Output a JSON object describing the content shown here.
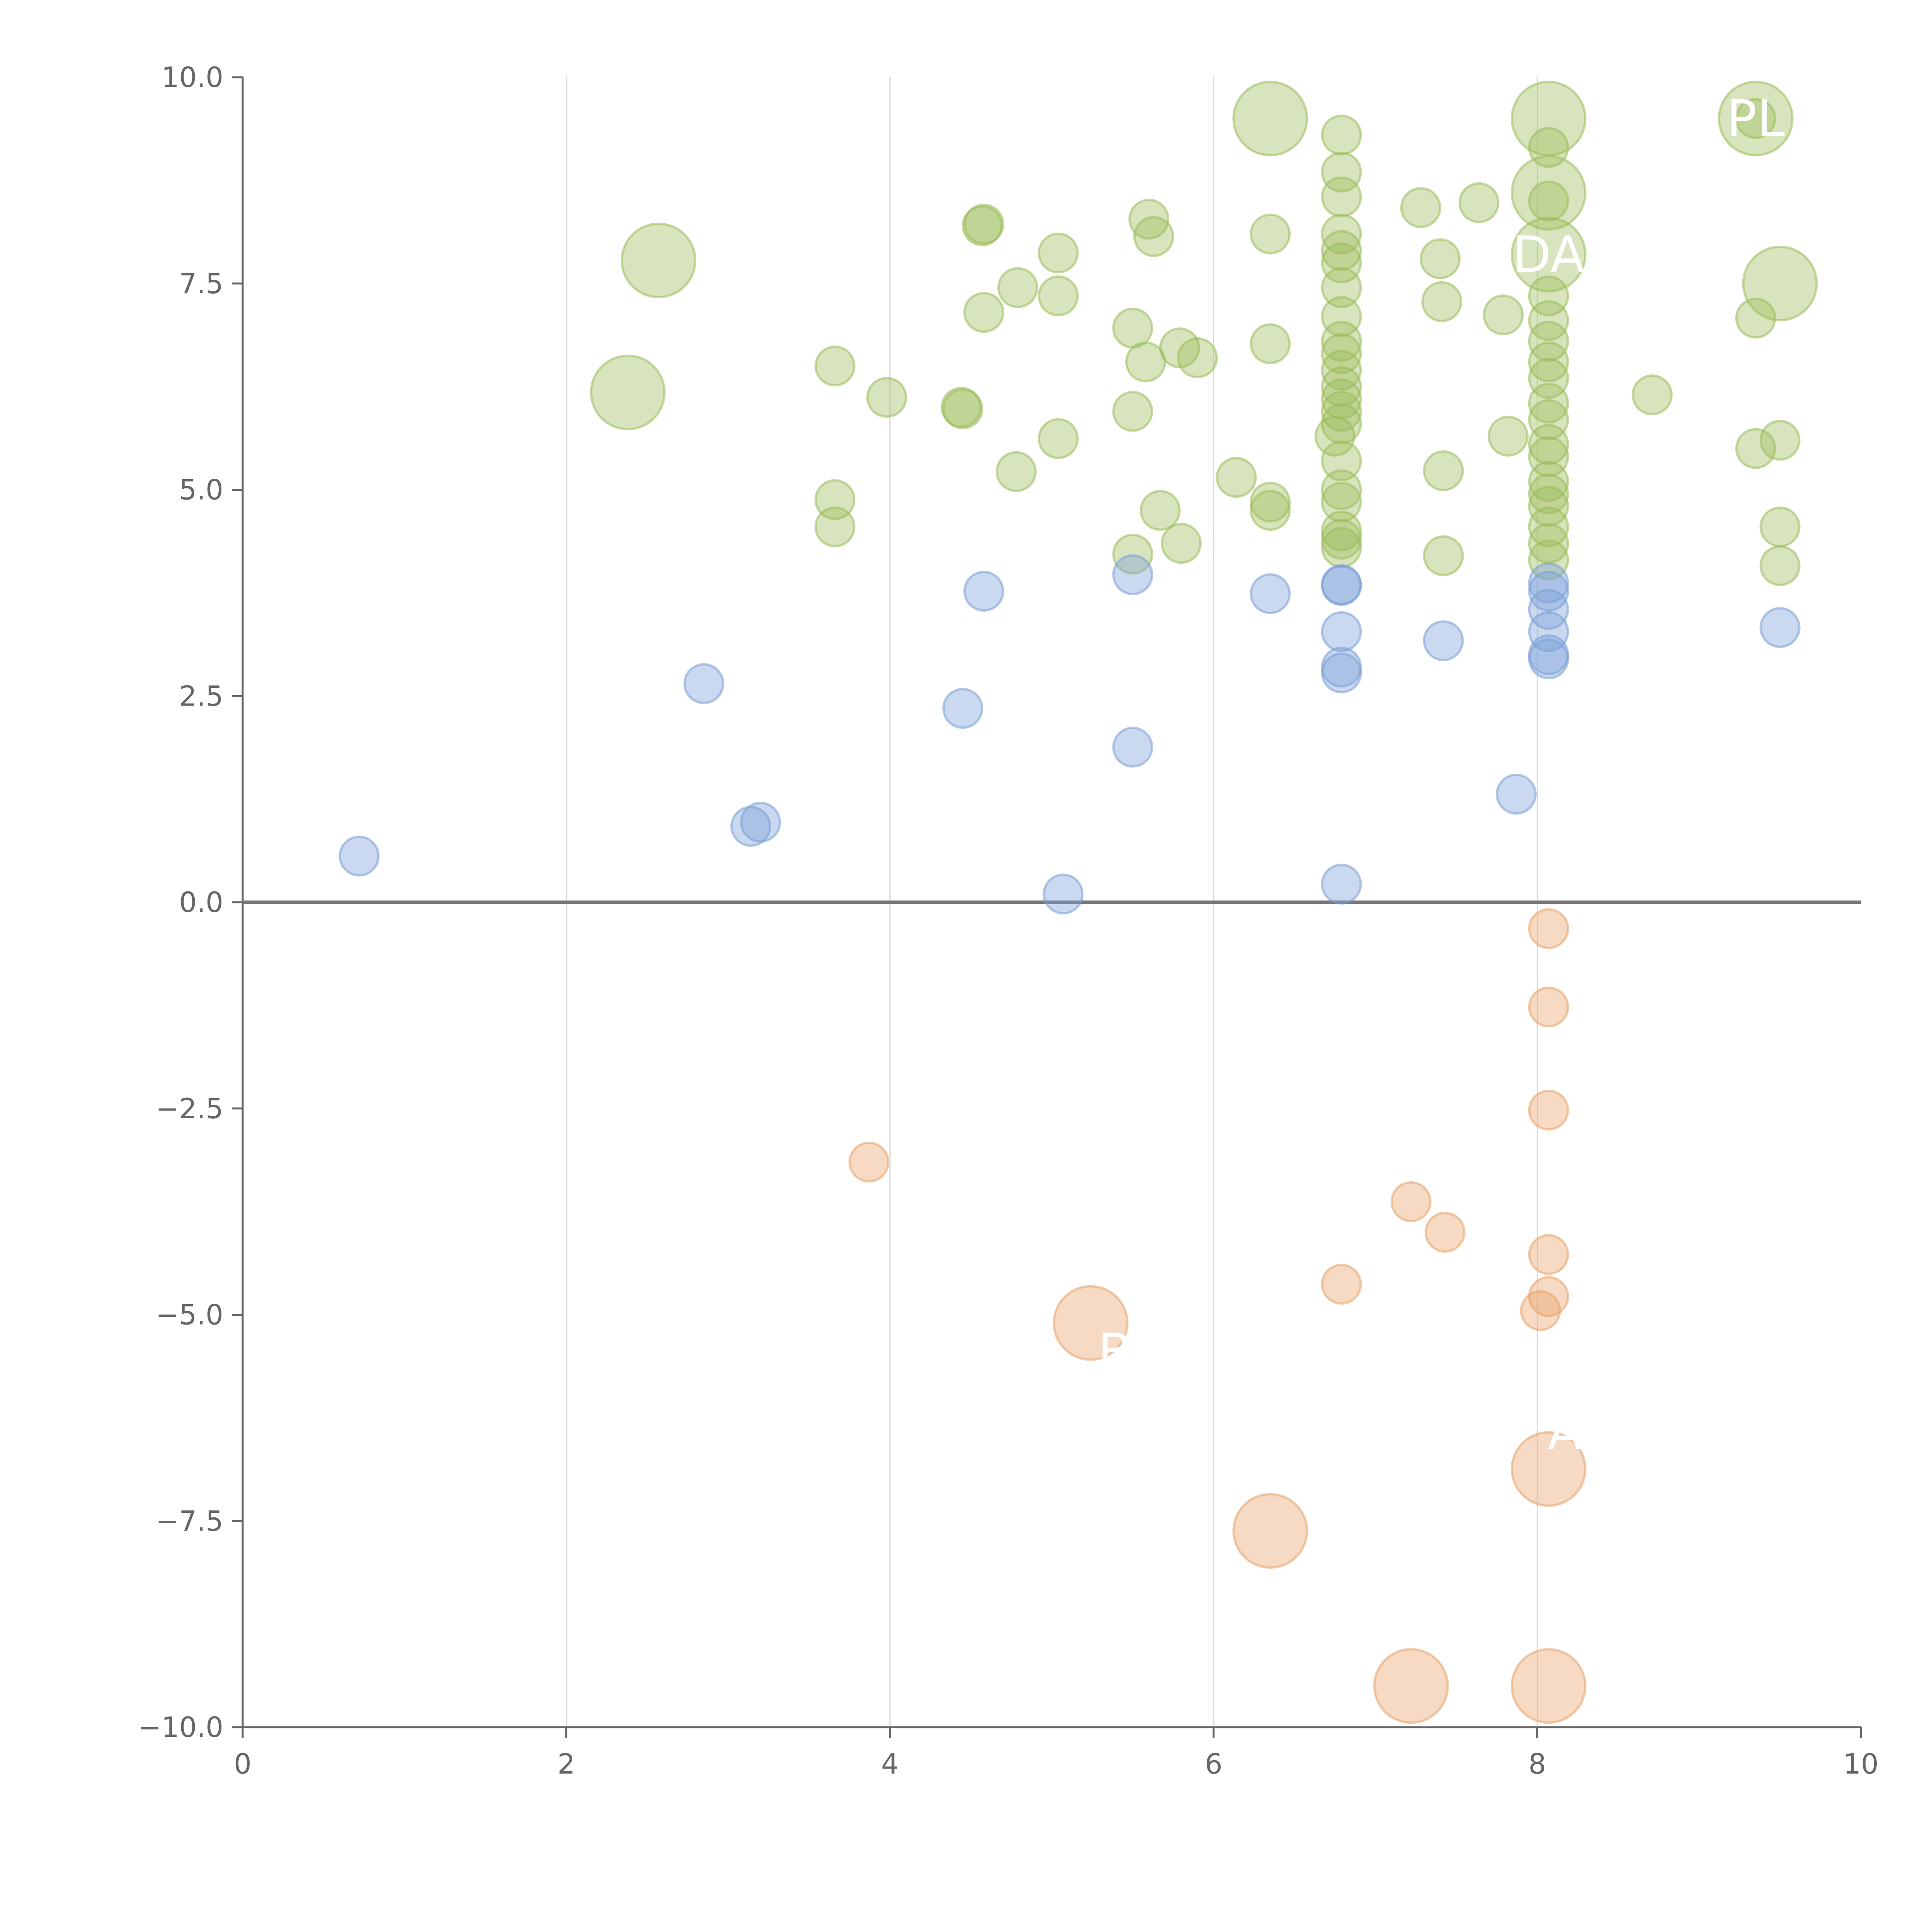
{
  "colors": {
    "positive_high": "#9bbb59",
    "positive_low": "#7a9fd6",
    "negative": "#e8a36a",
    "axis": "#666666",
    "grid": "#d9d9d9"
  },
  "chart_data": {
    "type": "scatter",
    "title": "",
    "xlabel": "",
    "ylabel": "",
    "xlim": [
      0,
      10
    ],
    "ylim": [
      -10,
      10
    ],
    "x_ticks": [
      0,
      2,
      4,
      6,
      8,
      10
    ],
    "x_tick_labels": [
      "0",
      "2",
      "4",
      "6",
      "8",
      "10"
    ],
    "y_ticks": [
      10,
      7.5,
      5,
      2.5,
      0,
      -2.5,
      -5,
      -7.5,
      -10
    ],
    "y_tick_labels": [
      "10.0",
      "7.5",
      "5.0",
      "2.5",
      "0.0",
      "−2.5",
      "−5.0",
      "−7.5",
      "−10.0"
    ],
    "grid": "vertical",
    "series": [
      {
        "name": "green",
        "color": "#9bbb59",
        "points": [
          [
            6.35,
            9.5,
            "large"
          ],
          [
            8.07,
            9.5,
            "large"
          ],
          [
            9.35,
            9.5,
            "large"
          ],
          [
            9.35,
            9.5,
            "small"
          ],
          [
            8.07,
            8.6,
            "large"
          ],
          [
            8.07,
            7.85,
            "large"
          ],
          [
            2.57,
            7.78,
            "large"
          ],
          [
            9.5,
            7.5,
            "large"
          ],
          [
            2.38,
            6.18,
            "large"
          ],
          [
            6.79,
            9.3,
            "small"
          ],
          [
            8.07,
            9.15,
            "small"
          ],
          [
            6.79,
            8.85,
            "small"
          ],
          [
            6.79,
            8.55,
            "small"
          ],
          [
            8.07,
            8.5,
            "small"
          ],
          [
            7.28,
            8.42,
            "small"
          ],
          [
            7.64,
            8.48,
            "small"
          ],
          [
            5.6,
            8.28,
            "small"
          ],
          [
            4.57,
            8.2,
            "small"
          ],
          [
            4.58,
            8.22,
            "small"
          ],
          [
            6.35,
            8.1,
            "small"
          ],
          [
            5.63,
            8.07,
            "small"
          ],
          [
            6.79,
            8.1,
            "small"
          ],
          [
            6.79,
            7.9,
            "small"
          ],
          [
            5.04,
            7.87,
            "small"
          ],
          [
            6.79,
            7.75,
            "small"
          ],
          [
            7.4,
            7.8,
            "small"
          ],
          [
            4.79,
            7.45,
            "small"
          ],
          [
            6.79,
            7.45,
            "small"
          ],
          [
            5.04,
            7.35,
            "small"
          ],
          [
            7.41,
            7.28,
            "small"
          ],
          [
            4.58,
            7.15,
            "small"
          ],
          [
            7.79,
            7.12,
            "small"
          ],
          [
            6.79,
            7.1,
            "small"
          ],
          [
            9.35,
            7.08,
            "small"
          ],
          [
            8.07,
            7.35,
            "small"
          ],
          [
            8.07,
            7.05,
            "small"
          ],
          [
            5.5,
            6.96,
            "small"
          ],
          [
            6.79,
            6.8,
            "small"
          ],
          [
            6.35,
            6.77,
            "small"
          ],
          [
            8.07,
            6.8,
            "small"
          ],
          [
            5.79,
            6.72,
            "small"
          ],
          [
            6.79,
            6.65,
            "small"
          ],
          [
            5.9,
            6.6,
            "small"
          ],
          [
            8.07,
            6.55,
            "small"
          ],
          [
            5.58,
            6.55,
            "small"
          ],
          [
            3.66,
            6.5,
            "small"
          ],
          [
            6.79,
            6.45,
            "small"
          ],
          [
            8.07,
            6.35,
            "small"
          ],
          [
            6.79,
            6.25,
            "small"
          ],
          [
            8.71,
            6.15,
            "small"
          ],
          [
            3.98,
            6.12,
            "small"
          ],
          [
            6.79,
            6.1,
            "small"
          ],
          [
            8.07,
            6.05,
            "small"
          ],
          [
            4.44,
            6.0,
            "small"
          ],
          [
            4.45,
            5.98,
            "small"
          ],
          [
            6.79,
            5.95,
            "small"
          ],
          [
            5.5,
            5.95,
            "small"
          ],
          [
            8.07,
            5.85,
            "small"
          ],
          [
            6.79,
            5.8,
            "small"
          ],
          [
            7.82,
            5.65,
            "small"
          ],
          [
            6.75,
            5.65,
            "small"
          ],
          [
            5.04,
            5.62,
            "small"
          ],
          [
            9.5,
            5.6,
            "small"
          ],
          [
            8.07,
            5.55,
            "small"
          ],
          [
            9.35,
            5.5,
            "small"
          ],
          [
            6.79,
            5.35,
            "small"
          ],
          [
            8.07,
            5.4,
            "small"
          ],
          [
            7.42,
            5.23,
            "small"
          ],
          [
            4.78,
            5.22,
            "small"
          ],
          [
            6.14,
            5.15,
            "small"
          ],
          [
            8.07,
            5.1,
            "small"
          ],
          [
            6.79,
            5.0,
            "small"
          ],
          [
            8.07,
            4.95,
            "small"
          ],
          [
            6.79,
            4.85,
            "small"
          ],
          [
            3.66,
            4.88,
            "small"
          ],
          [
            6.35,
            4.85,
            "small"
          ],
          [
            8.07,
            4.8,
            "small"
          ],
          [
            5.67,
            4.75,
            "small"
          ],
          [
            6.35,
            4.75,
            "small"
          ],
          [
            9.5,
            4.55,
            "small"
          ],
          [
            3.66,
            4.55,
            "small"
          ],
          [
            8.07,
            4.55,
            "small"
          ],
          [
            6.79,
            4.5,
            "small"
          ],
          [
            6.79,
            4.4,
            "small"
          ],
          [
            5.8,
            4.35,
            "small"
          ],
          [
            8.07,
            4.35,
            "small"
          ],
          [
            6.79,
            4.3,
            "small"
          ],
          [
            5.5,
            4.22,
            "small"
          ],
          [
            7.42,
            4.2,
            "small"
          ],
          [
            8.07,
            4.15,
            "small"
          ],
          [
            9.5,
            4.08,
            "small"
          ]
        ]
      },
      {
        "name": "blue",
        "color": "#7a9fd6",
        "points": [
          [
            5.5,
            3.97,
            "small"
          ],
          [
            8.07,
            3.87,
            "small"
          ],
          [
            6.79,
            3.85,
            "small"
          ],
          [
            6.79,
            3.84,
            "small"
          ],
          [
            8.07,
            3.77,
            "small"
          ],
          [
            4.58,
            3.77,
            "small"
          ],
          [
            6.35,
            3.74,
            "small"
          ],
          [
            8.07,
            3.55,
            "small"
          ],
          [
            9.5,
            3.33,
            "small"
          ],
          [
            8.07,
            3.28,
            "small"
          ],
          [
            6.79,
            3.28,
            "small"
          ],
          [
            7.42,
            3.17,
            "small"
          ],
          [
            8.07,
            3.0,
            "small"
          ],
          [
            8.07,
            2.95,
            "small"
          ],
          [
            6.79,
            2.85,
            "small"
          ],
          [
            6.79,
            2.78,
            "small"
          ],
          [
            2.85,
            2.65,
            "small"
          ],
          [
            4.45,
            2.35,
            "small"
          ],
          [
            5.5,
            1.88,
            "small"
          ],
          [
            7.87,
            1.31,
            "small"
          ],
          [
            3.2,
            0.97,
            "small"
          ],
          [
            3.14,
            0.92,
            "small"
          ],
          [
            0.72,
            0.56,
            "small"
          ],
          [
            6.79,
            0.22,
            "small"
          ],
          [
            5.07,
            0.1,
            "small"
          ]
        ]
      },
      {
        "name": "orange",
        "color": "#e8a36a",
        "points": [
          [
            8.07,
            -0.32,
            "small"
          ],
          [
            8.07,
            -1.27,
            "small"
          ],
          [
            8.07,
            -2.52,
            "small"
          ],
          [
            3.87,
            -3.15,
            "small"
          ],
          [
            7.22,
            -3.63,
            "small"
          ],
          [
            7.43,
            -4.0,
            "small"
          ],
          [
            8.07,
            -4.27,
            "small"
          ],
          [
            6.79,
            -4.63,
            "small"
          ],
          [
            8.07,
            -4.78,
            "small"
          ],
          [
            8.02,
            -4.95,
            "small"
          ],
          [
            5.24,
            -5.1,
            "large"
          ],
          [
            8.07,
            -6.87,
            "large"
          ],
          [
            6.35,
            -7.62,
            "large"
          ],
          [
            7.22,
            -9.5,
            "large"
          ],
          [
            8.07,
            -9.5,
            "large"
          ]
        ]
      }
    ],
    "annotations": [
      {
        "text": "PL",
        "x": 9.35,
        "y": 9.5,
        "dx": 0,
        "dy": 0
      },
      {
        "text": "DA",
        "x": 8.07,
        "y": 7.85,
        "dx": 0,
        "dy": 0
      },
      {
        "text": "B",
        "x": 5.24,
        "y": -5.1,
        "dx": 0.15,
        "dy": -0.35
      },
      {
        "text": "A",
        "x": 8.07,
        "y": -6.87,
        "dx": 0.1,
        "dy": 0.45
      }
    ]
  }
}
